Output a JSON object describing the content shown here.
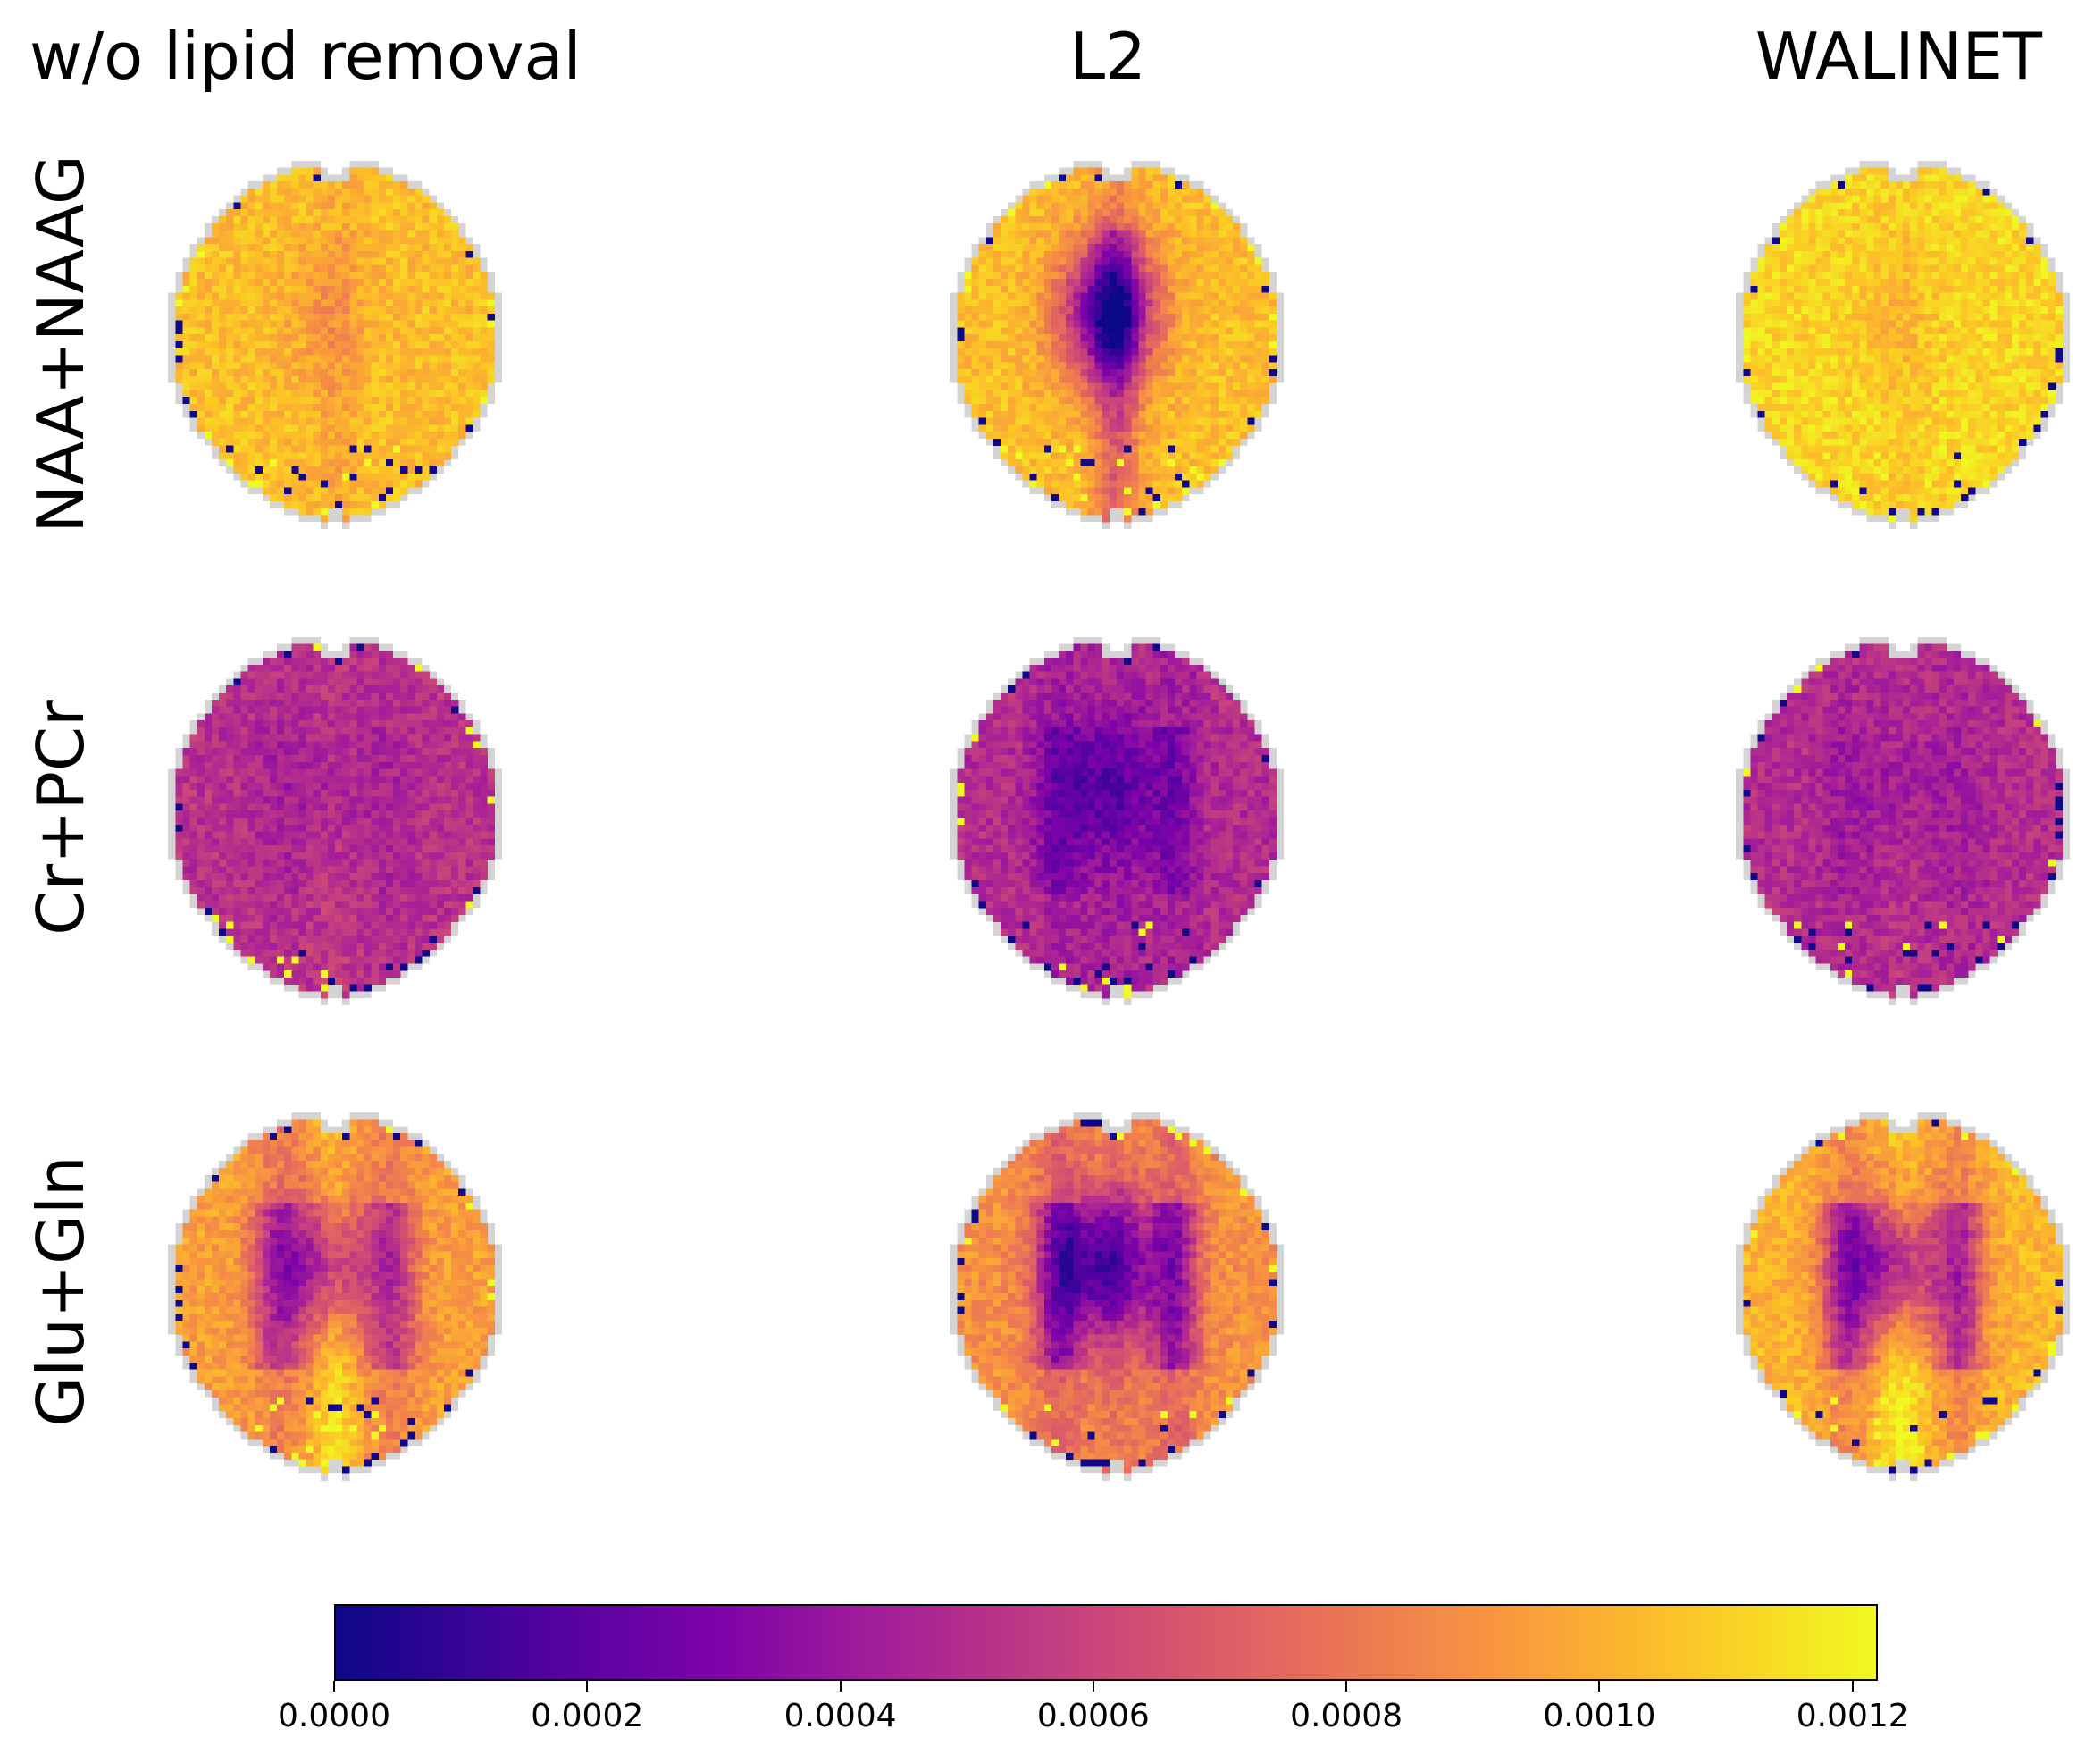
{
  "chart_data": {
    "type": "heatmap",
    "columns": [
      "w/o lipid removal",
      "L2",
      "WALINET"
    ],
    "rows": [
      "NAA+NAAG",
      "Cr+PCr",
      "Glu+Gln"
    ],
    "colormap": "plasma",
    "colorbar": {
      "min": 0.0,
      "max": 0.00122,
      "ticks": [
        "0.0000",
        "0.0002",
        "0.0004",
        "0.0006",
        "0.0008",
        "0.0010",
        "0.0012"
      ],
      "tick_values": [
        0.0,
        0.0002,
        0.0004,
        0.0006,
        0.0008,
        0.001,
        0.0012
      ],
      "orientation": "horizontal",
      "placement": "bottom"
    },
    "panels": [
      {
        "row": "NAA+NAAG",
        "column": "w/o lipid removal",
        "typical_value": 0.00105,
        "center_value": 0.00095,
        "midline_value": 0.00098
      },
      {
        "row": "NAA+NAAG",
        "column": "L2",
        "typical_value": 0.00105,
        "center_value": 0.0002,
        "midline_value": 0.0007
      },
      {
        "row": "NAA+NAAG",
        "column": "WALINET",
        "typical_value": 0.00112,
        "center_value": 0.00105,
        "midline_value": 0.00108
      },
      {
        "row": "Cr+PCr",
        "column": "w/o lipid removal",
        "typical_value": 0.00052,
        "center_value": 0.00045,
        "midline_value": 0.00055
      },
      {
        "row": "Cr+PCr",
        "column": "L2",
        "typical_value": 0.0005,
        "center_value": 0.00022,
        "midline_value": 0.00045
      },
      {
        "row": "Cr+PCr",
        "column": "WALINET",
        "typical_value": 0.0005,
        "center_value": 0.00042,
        "midline_value": 0.00052
      },
      {
        "row": "Glu+Gln",
        "column": "w/o lipid removal",
        "typical_value": 0.00095,
        "center_value": 0.0004,
        "midline_value": 0.00115
      },
      {
        "row": "Glu+Gln",
        "column": "L2",
        "typical_value": 0.0009,
        "center_value": 0.0002,
        "midline_value": 0.0008
      },
      {
        "row": "Glu+Gln",
        "column": "WALINET",
        "typical_value": 0.00102,
        "center_value": 0.00035,
        "midline_value": 0.0012
      }
    ]
  }
}
